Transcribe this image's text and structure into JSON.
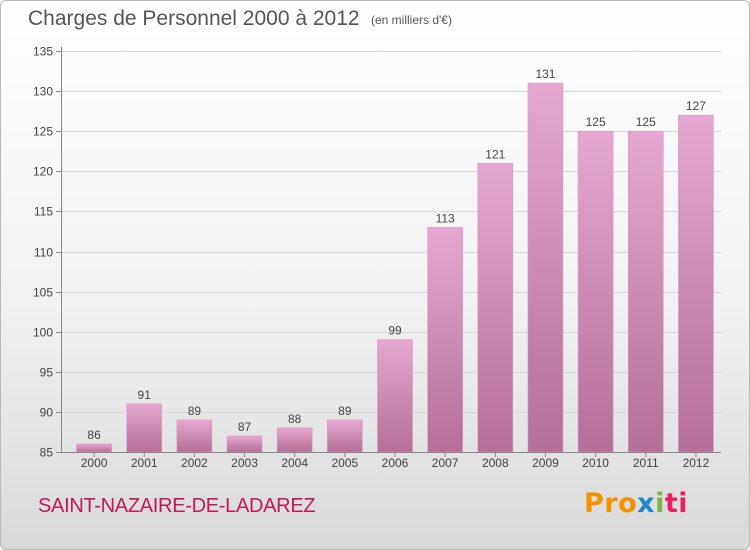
{
  "title": "Charges de Personnel 2000 à 2012",
  "subtitle": "(en milliers d'€)",
  "city": "SAINT-NAZAIRE-DE-LADAREZ",
  "logo": {
    "p1": "Pro",
    "p2": "x",
    "p3": "i",
    "p4": "ti"
  },
  "colors": {
    "bar_top": "#e6a8cf",
    "bar_bottom": "#b46f96",
    "axis": "#888888",
    "grid": "#d6d6d6",
    "text": "#444444",
    "city": "#c2185b"
  },
  "chart_data": {
    "type": "bar",
    "categories": [
      "2000",
      "2001",
      "2002",
      "2003",
      "2004",
      "2005",
      "2006",
      "2007",
      "2008",
      "2009",
      "2010",
      "2011",
      "2012"
    ],
    "values": [
      86,
      91,
      89,
      87,
      88,
      89,
      99,
      113,
      121,
      131,
      125,
      125,
      127
    ],
    "data_labels": [
      "86",
      "91",
      "89",
      "87",
      "88",
      "89",
      "99",
      "113",
      "121",
      "131",
      "125",
      "125",
      "127"
    ],
    "ylim": [
      85,
      135
    ],
    "yticks": [
      85,
      90,
      95,
      100,
      105,
      110,
      115,
      120,
      125,
      130,
      135
    ],
    "grid": true,
    "xlabel": "",
    "ylabel": ""
  }
}
